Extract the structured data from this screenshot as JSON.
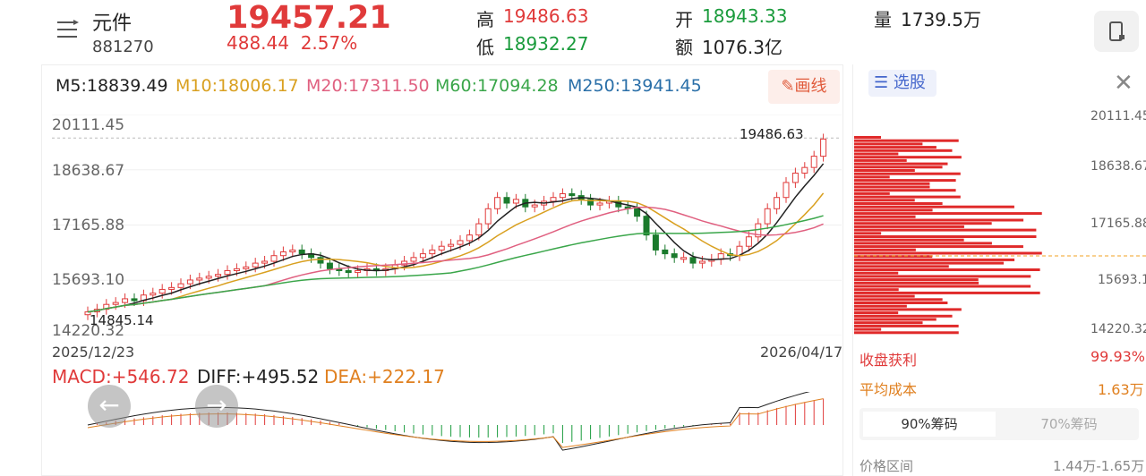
{
  "header": {
    "name": "元件",
    "code": "881270",
    "price": "19457.21",
    "change": "488.44",
    "pct": "2.57%",
    "high_label": "高",
    "high": "19486.63",
    "low_label": "低",
    "low": "18932.27",
    "open_label": "开",
    "open": "18943.33",
    "amount_label": "额",
    "amount": "1076.3亿",
    "vol_label": "量",
    "vol": "1739.5万"
  },
  "ma": {
    "m5": "M5:18839.49",
    "m10": "M10:18006.17",
    "m20": "M20:17311.50",
    "m60": "M60:17094.28",
    "m250": "M250:13941.45"
  },
  "draw_label": "画线",
  "chart_data": {
    "type": "candlestick",
    "y_ticks": [
      "20111.45",
      "18638.67",
      "17165.88",
      "15693.10",
      "14220.32"
    ],
    "x_start": "2025/12/23",
    "x_end": "2026/04/17",
    "high_mark": "19486.63",
    "low_mark": "14845.14",
    "close": [
      14850,
      14920,
      15050,
      15100,
      15200,
      15150,
      15300,
      15350,
      15450,
      15500,
      15600,
      15700,
      15750,
      15800,
      15850,
      15950,
      16000,
      16050,
      16150,
      16200,
      16350,
      16450,
      16500,
      16400,
      16300,
      16150,
      16000,
      15950,
      15900,
      15950,
      16000,
      15950,
      16000,
      16100,
      16200,
      16300,
      16400,
      16500,
      16600,
      16650,
      16750,
      16900,
      17200,
      17600,
      17900,
      17750,
      17850,
      17650,
      17700,
      17800,
      17900,
      18000,
      17950,
      17850,
      17700,
      17750,
      17800,
      17650,
      17600,
      17400,
      16900,
      16500,
      16400,
      16300,
      16300,
      16150,
      16200,
      16250,
      16400,
      16350,
      16600,
      16850,
      17200,
      17600,
      17900,
      18300,
      18550,
      18700,
      19000,
      19457
    ]
  },
  "macd": {
    "macd": "MACD:+546.72",
    "diff": "DIFF:+495.52",
    "dea": "DEA:+222.17"
  },
  "side": {
    "select": "选股",
    "ticks": [
      "20111.45",
      "18638.67",
      "17165.88",
      "15693.1",
      "14220.32"
    ],
    "profit_label": "收盘获利",
    "profit": "99.93%",
    "cost_label": "平均成本",
    "cost": "1.63万",
    "tab1": "90%筹码",
    "tab2": "70%筹码",
    "range_label": "价格区间",
    "range": "1.44万-1.65万"
  }
}
